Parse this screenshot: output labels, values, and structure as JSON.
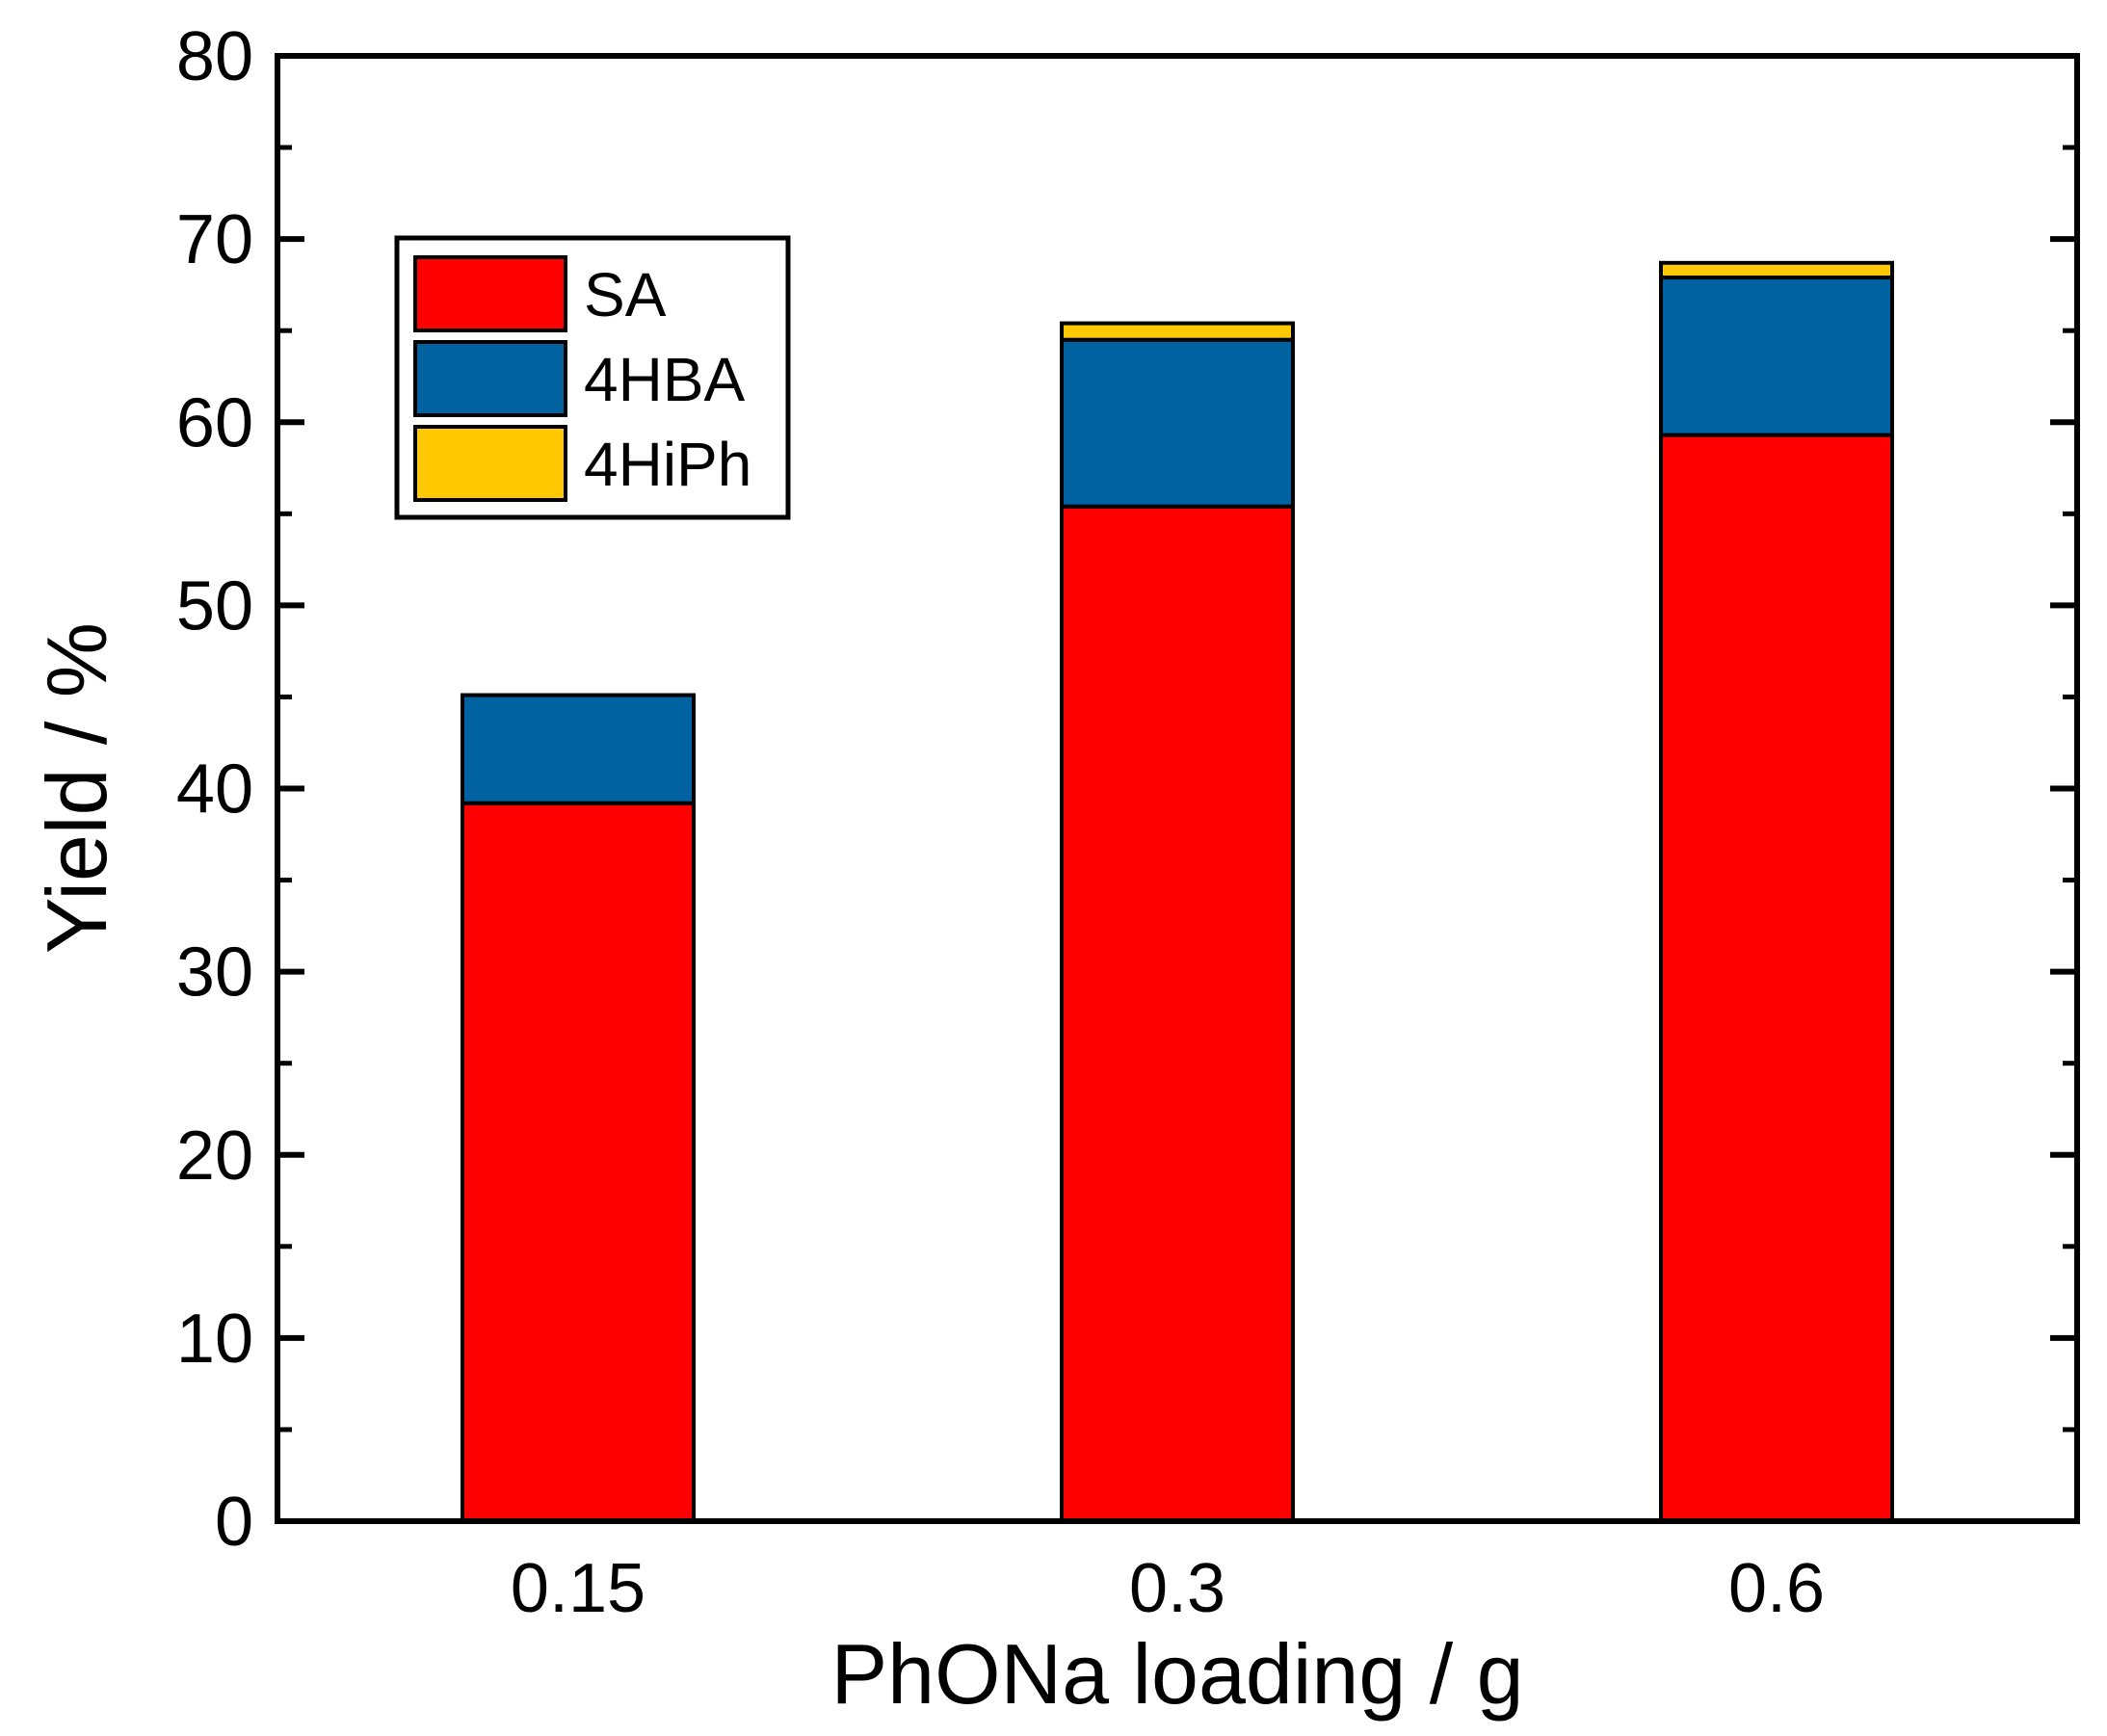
{
  "chart_data": {
    "type": "bar",
    "stacked": true,
    "title": "",
    "xlabel": "PhONa loading / g",
    "ylabel": "Yield / %",
    "categories": [
      "0.15",
      "0.3",
      "0.6"
    ],
    "ylim": [
      0,
      80
    ],
    "yticks": [
      "0",
      "10",
      "20",
      "30",
      "40",
      "50",
      "60",
      "70",
      "80"
    ],
    "series": [
      {
        "name": "SA",
        "color": "#ff0000",
        "values": [
          39.2,
          55.4,
          59.3
        ]
      },
      {
        "name": "4HBA",
        "color": "#0062a0",
        "values": [
          5.9,
          9.1,
          8.6
        ]
      },
      {
        "name": "4HiPh",
        "color": "#ffc800",
        "values": [
          0.0,
          0.9,
          0.8
        ]
      }
    ],
    "legend": {
      "position": "top-left",
      "entries": [
        "SA",
        "4HBA",
        "4HiPh"
      ]
    },
    "grid": false
  }
}
